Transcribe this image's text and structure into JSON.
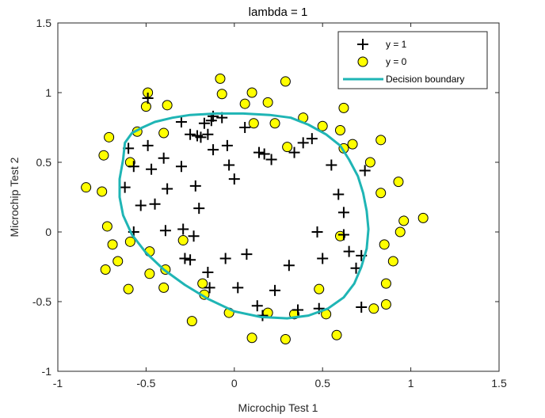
{
  "chart_data": {
    "type": "scatter",
    "title": "lambda = 1",
    "xlabel": "Microchip Test 1",
    "ylabel": "Microchip Test 2",
    "xlim": [
      -1,
      1.5
    ],
    "ylim": [
      -1,
      1.5
    ],
    "xticks": [
      "-1",
      "-0.5",
      "0",
      "0.5",
      "1",
      "1.5"
    ],
    "yticks": [
      "-1",
      "-0.5",
      "0",
      "0.5",
      "1",
      "1.5"
    ],
    "grid": false,
    "legend_position": "top-right",
    "colors": {
      "positive_marker": "#000000",
      "negative_face": "#ffff00",
      "negative_edge": "#000000",
      "boundary": "#1fb5b5"
    },
    "series": [
      {
        "name": "y = 1",
        "marker": "plus",
        "points": [
          [
            -0.49,
            0.96
          ],
          [
            -0.17,
            0.78
          ],
          [
            -0.3,
            0.79
          ],
          [
            -0.07,
            0.82
          ],
          [
            -0.12,
            0.83
          ],
          [
            -0.13,
            0.8
          ],
          [
            -0.25,
            0.7
          ],
          [
            -0.21,
            0.69
          ],
          [
            -0.19,
            0.68
          ],
          [
            -0.15,
            0.7
          ],
          [
            -0.04,
            0.62
          ],
          [
            0.06,
            0.75
          ],
          [
            0.14,
            0.57
          ],
          [
            0.17,
            0.56
          ],
          [
            0.21,
            0.52
          ],
          [
            0.34,
            0.57
          ],
          [
            0.39,
            0.64
          ],
          [
            0.44,
            0.67
          ],
          [
            0.55,
            0.48
          ],
          [
            0.59,
            0.27
          ],
          [
            0.62,
            0.14
          ],
          [
            0.62,
            -0.02
          ],
          [
            0.65,
            -0.14
          ],
          [
            0.69,
            -0.26
          ],
          [
            0.72,
            -0.17
          ],
          [
            0.74,
            0.44
          ],
          [
            0.72,
            -0.54
          ],
          [
            0.48,
            -0.55
          ],
          [
            0.47,
            0.0
          ],
          [
            0.5,
            -0.19
          ],
          [
            0.36,
            -0.56
          ],
          [
            0.31,
            -0.24
          ],
          [
            0.23,
            -0.42
          ],
          [
            0.16,
            -0.6
          ],
          [
            0.13,
            -0.53
          ],
          [
            0.07,
            -0.16
          ],
          [
            0.02,
            -0.4
          ],
          [
            -0.05,
            -0.19
          ],
          [
            -0.14,
            -0.4
          ],
          [
            -0.15,
            -0.29
          ],
          [
            -0.23,
            -0.03
          ],
          [
            -0.25,
            -0.2
          ],
          [
            -0.29,
            0.02
          ],
          [
            -0.28,
            -0.19
          ],
          [
            -0.39,
            0.01
          ],
          [
            -0.45,
            0.2
          ],
          [
            -0.53,
            0.19
          ],
          [
            -0.47,
            0.45
          ],
          [
            -0.49,
            0.62
          ],
          [
            -0.6,
            0.6
          ],
          [
            -0.62,
            0.32
          ],
          [
            -0.57,
            0.47
          ],
          [
            -0.4,
            0.53
          ],
          [
            -0.3,
            0.47
          ],
          [
            -0.22,
            0.33
          ],
          [
            -0.2,
            0.17
          ],
          [
            -0.12,
            0.59
          ],
          [
            -0.03,
            0.48
          ],
          [
            0.0,
            0.38
          ],
          [
            -0.38,
            0.31
          ],
          [
            -0.57,
            0.0
          ]
        ]
      },
      {
        "name": "y = 0",
        "marker": "circle",
        "points": [
          [
            -0.49,
            1.0
          ],
          [
            -0.5,
            0.9
          ],
          [
            -0.38,
            0.91
          ],
          [
            -0.07,
            0.99
          ],
          [
            -0.08,
            1.1
          ],
          [
            0.06,
            0.92
          ],
          [
            0.1,
            1.0
          ],
          [
            0.19,
            0.93
          ],
          [
            0.29,
            1.08
          ],
          [
            0.39,
            0.82
          ],
          [
            0.5,
            0.76
          ],
          [
            0.62,
            0.89
          ],
          [
            0.6,
            0.73
          ],
          [
            0.67,
            0.63
          ],
          [
            0.77,
            0.5
          ],
          [
            0.83,
            0.66
          ],
          [
            0.93,
            0.36
          ],
          [
            0.83,
            0.28
          ],
          [
            0.96,
            0.08
          ],
          [
            0.94,
            0.0
          ],
          [
            1.07,
            0.1
          ],
          [
            0.9,
            -0.21
          ],
          [
            0.86,
            -0.37
          ],
          [
            0.86,
            -0.52
          ],
          [
            0.79,
            -0.55
          ],
          [
            0.58,
            -0.74
          ],
          [
            0.52,
            -0.59
          ],
          [
            0.48,
            -0.41
          ],
          [
            0.29,
            -0.77
          ],
          [
            0.34,
            -0.59
          ],
          [
            0.1,
            -0.76
          ],
          [
            0.19,
            -0.58
          ],
          [
            -0.03,
            -0.58
          ],
          [
            -0.24,
            -0.64
          ],
          [
            -0.17,
            -0.45
          ],
          [
            -0.18,
            -0.37
          ],
          [
            -0.4,
            -0.4
          ],
          [
            -0.48,
            -0.3
          ],
          [
            -0.48,
            -0.14
          ],
          [
            -0.6,
            -0.41
          ],
          [
            -0.66,
            -0.21
          ],
          [
            -0.69,
            -0.09
          ],
          [
            -0.73,
            -0.27
          ],
          [
            -0.72,
            0.04
          ],
          [
            -0.75,
            0.29
          ],
          [
            -0.84,
            0.32
          ],
          [
            -0.74,
            0.55
          ],
          [
            -0.71,
            0.68
          ],
          [
            -0.59,
            0.5
          ],
          [
            -0.55,
            0.72
          ],
          [
            -0.4,
            0.71
          ],
          [
            -0.39,
            -0.27
          ],
          [
            -0.59,
            -0.07
          ],
          [
            0.11,
            0.78
          ],
          [
            0.23,
            0.78
          ],
          [
            0.3,
            0.61
          ],
          [
            0.6,
            -0.03
          ],
          [
            0.85,
            -0.09
          ],
          [
            0.62,
            0.6
          ],
          [
            -0.29,
            -0.06
          ]
        ]
      },
      {
        "name": "Decision boundary",
        "marker": "line",
        "points": [
          [
            -0.63,
            0.52
          ],
          [
            -0.62,
            0.64
          ],
          [
            -0.58,
            0.71
          ],
          [
            -0.52,
            0.75
          ],
          [
            -0.45,
            0.79
          ],
          [
            -0.35,
            0.82
          ],
          [
            -0.25,
            0.84
          ],
          [
            -0.1,
            0.85
          ],
          [
            0.05,
            0.85
          ],
          [
            0.2,
            0.84
          ],
          [
            0.32,
            0.82
          ],
          [
            0.42,
            0.77
          ],
          [
            0.52,
            0.7
          ],
          [
            0.6,
            0.62
          ],
          [
            0.65,
            0.52
          ],
          [
            0.7,
            0.4
          ],
          [
            0.73,
            0.28
          ],
          [
            0.75,
            0.15
          ],
          [
            0.76,
            0.02
          ],
          [
            0.75,
            -0.12
          ],
          [
            0.72,
            -0.25
          ],
          [
            0.68,
            -0.37
          ],
          [
            0.62,
            -0.47
          ],
          [
            0.53,
            -0.55
          ],
          [
            0.42,
            -0.6
          ],
          [
            0.3,
            -0.62
          ],
          [
            0.15,
            -0.61
          ],
          [
            0.0,
            -0.57
          ],
          [
            -0.15,
            -0.48
          ],
          [
            -0.28,
            -0.38
          ],
          [
            -0.4,
            -0.27
          ],
          [
            -0.5,
            -0.15
          ],
          [
            -0.58,
            -0.02
          ],
          [
            -0.63,
            0.12
          ],
          [
            -0.65,
            0.25
          ],
          [
            -0.65,
            0.38
          ],
          [
            -0.63,
            0.52
          ]
        ]
      }
    ]
  }
}
